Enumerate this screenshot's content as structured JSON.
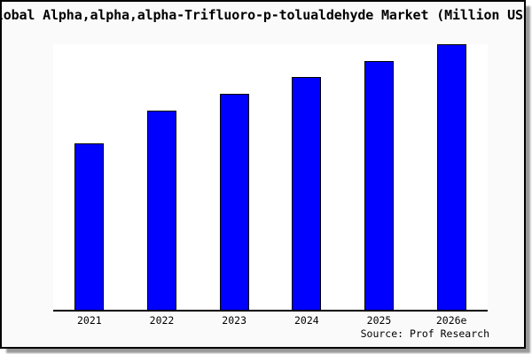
{
  "chart_data": {
    "type": "bar",
    "title": "Global Alpha,alpha,alpha-Trifluoro-p-tolualdehyde Market (Million USD)",
    "categories": [
      "2021",
      "2022",
      "2023",
      "2024",
      "2025",
      "2026e"
    ],
    "values": [
      62.7,
      75.0,
      81.3,
      87.7,
      93.7,
      100.0
    ],
    "xlabel": "",
    "ylabel": "",
    "ylim": [
      0,
      100
    ],
    "y_axis_shown": false,
    "grid": false,
    "legend": "none"
  },
  "footer": {
    "source": "Source: Prof Research"
  },
  "colors": {
    "bar_fill": "#0000ff",
    "bar_border": "#000000",
    "card_bg": "#fafafa",
    "plot_bg": "#ffffff",
    "axis": "#000000",
    "text": "#000000",
    "shadow": "#999999"
  }
}
